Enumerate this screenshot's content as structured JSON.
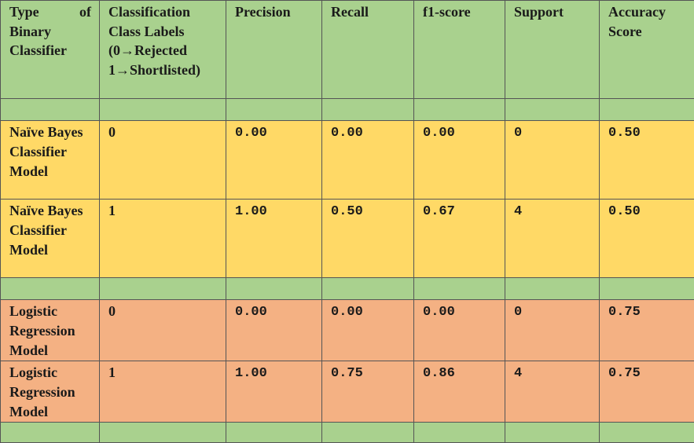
{
  "header": {
    "type_line1_word1": "Type",
    "type_line1_word2": "of",
    "type_rest": "Binary Classifier",
    "class_labels_line1": "Classification",
    "class_labels_line2": "Class Labels",
    "class_labels_line3": "(0→Rejected",
    "class_labels_line4": "1→Shortlisted)",
    "precision": "Precision",
    "recall": "Recall",
    "f1": "f1-score",
    "support": "Support",
    "accuracy": "Accuracy Score"
  },
  "rows": [
    {
      "model": "Naïve Bayes Classifier Model",
      "label": "0",
      "precision": "0.00",
      "recall": "0.00",
      "f1": "0.00",
      "support": "0",
      "accuracy": "0.50"
    },
    {
      "model": "Naïve Bayes Classifier Model",
      "label": "1",
      "precision": "1.00",
      "recall": "0.50",
      "f1": "0.67",
      "support": "4",
      "accuracy": "0.50"
    },
    {
      "model": "Logistic Regression Model",
      "label": "0",
      "precision": "0.00",
      "recall": "0.00",
      "f1": "0.00",
      "support": "0",
      "accuracy": "0.75"
    },
    {
      "model": "Logistic Regression Model",
      "label": "1",
      "precision": "1.00",
      "recall": "0.75",
      "f1": "0.86",
      "support": "4",
      "accuracy": "0.75"
    }
  ],
  "colors": {
    "header_green": "#a9d18e",
    "naive_bayes_yellow": "#ffd966",
    "logistic_orange": "#f4b183"
  }
}
